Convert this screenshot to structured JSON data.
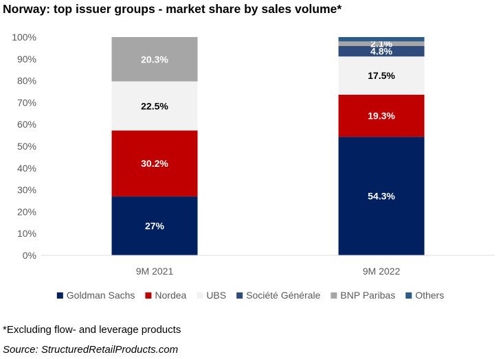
{
  "title": "Norway: top issuer groups - market share by sales volume*",
  "footnote": "*Excluding flow- and leverage products",
  "source": "Source: StructuredRetailProducts.com",
  "chart_data": {
    "type": "bar",
    "stacked": true,
    "title": "Norway: top issuer groups - market share by sales volume*",
    "categories": [
      "9M 2021",
      "9M 2022"
    ],
    "y_ticks": [
      "0%",
      "10%",
      "20%",
      "30%",
      "40%",
      "50%",
      "60%",
      "70%",
      "80%",
      "90%",
      "100%"
    ],
    "ylim": [
      0,
      100
    ],
    "grid": false,
    "legend_position": "bottom",
    "series": [
      {
        "name": "Goldman Sachs",
        "color": "#002060",
        "label_color": "#ffffff",
        "values": [
          27.0,
          54.3
        ],
        "labels": [
          "27%",
          "54.3%"
        ]
      },
      {
        "name": "Nordea",
        "color": "#c00000",
        "label_color": "#ffffff",
        "values": [
          30.2,
          19.3
        ],
        "labels": [
          "30.2%",
          "19.3%"
        ]
      },
      {
        "name": "UBS",
        "color": "#f2f2f2",
        "label_color": "#000000",
        "values": [
          22.5,
          17.5
        ],
        "labels": [
          "22.5%",
          "17.5%"
        ]
      },
      {
        "name": "Société Générale",
        "color": "#2f4b7c",
        "label_color": "#ffffff",
        "values": [
          0,
          4.8
        ],
        "labels": [
          "",
          "4.8%"
        ]
      },
      {
        "name": "BNP Paribas",
        "color": "#a6a6a6",
        "label_color": "#ffffff",
        "values": [
          20.3,
          2.1
        ],
        "labels": [
          "20.3%",
          "2.1%"
        ]
      },
      {
        "name": "Others",
        "color": "#2e5c8a",
        "label_color": "#ffffff",
        "values": [
          0,
          2.0
        ],
        "labels": [
          "",
          ""
        ]
      }
    ]
  }
}
